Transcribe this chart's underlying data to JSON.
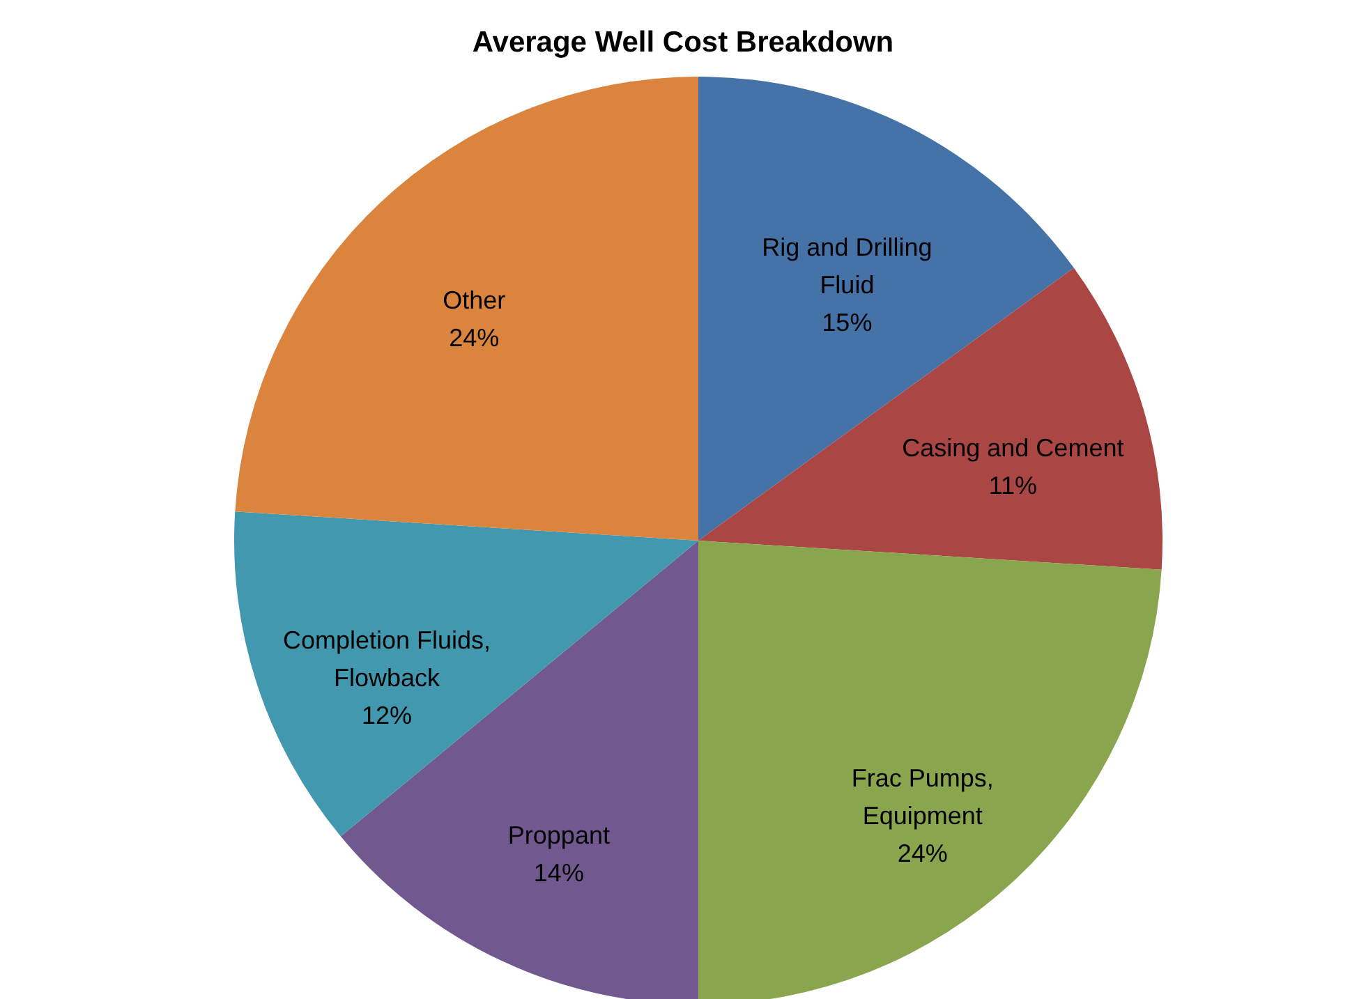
{
  "chart_data": {
    "type": "pie",
    "title": "Average Well Cost Breakdown",
    "categories": [
      "Rig and Drilling Fluid",
      "Casing and Cement",
      "Frac Pumps, Equipment",
      "Proppant",
      "Completion Fluids, Flowback",
      "Other"
    ],
    "values": [
      15,
      11,
      24,
      14,
      12,
      24
    ],
    "value_labels": [
      "15%",
      "11%",
      "24%",
      "14%",
      "12%",
      "24%"
    ],
    "colors": [
      "#4572a7",
      "#aa4643",
      "#89a54e",
      "#71588f",
      "#4198af",
      "#db843d"
    ],
    "legend": false
  }
}
